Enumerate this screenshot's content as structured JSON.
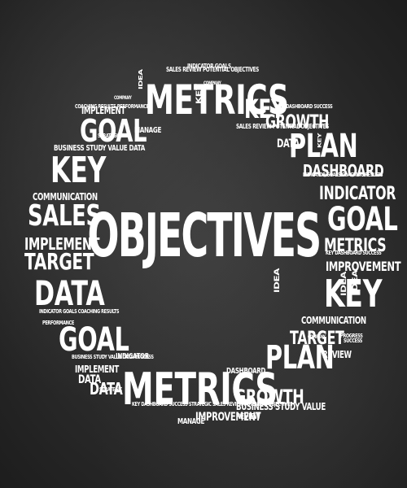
{
  "title": "OBJECTIVES",
  "words": [
    "METRICS",
    "GOAL",
    "KEY",
    "SALES",
    "IMPLEMENT",
    "TARGET",
    "DATA",
    "GOAL",
    "METRICS",
    "GROWTH",
    "PLAN",
    "TARGET",
    "KEY",
    "METRICS",
    "GOAL",
    "INDICATOR",
    "PLAN",
    "GROWTH",
    "KEY",
    "DASHBOARD",
    "IMPROVEMENT",
    "COMMUNICATION",
    "IMPROVEMENT",
    "BUSINESS STUDY VALUE",
    "BUSINESS STUDY VALUE DATA",
    "SALES REVIEW POTENTIAL OBJECTIVES",
    "SALES REVIEW POTENTIAL OBJECTIVES",
    "IMPLEMENT",
    "IMPLEMENT",
    "COMMUNICATION",
    "DATA",
    "DATA",
    "DATA",
    "IDEA",
    "IDEA",
    "IDEA",
    "IDEA",
    "MANAGE",
    "MANAGE",
    "REVIEW",
    "REVIEW",
    "DASHBOARD",
    "INDICATOR",
    "INDICATOR GOALS",
    "KEY DASHBOARD SUCCESS",
    "KEY DASHBOARD SUCCESS",
    "KEY DASHBOARD SUCCESS STRATEGIC SALES REVIEW POTENTIAL OBJECTIVES",
    "COACHING RESULTS PERFORMANCE",
    "INDICATOR GOALS COACHING RESULTS",
    "INDICATOR GOALS COACHING RESULTS",
    "BUSINESS STUDY VALUE DATA PROCESS",
    "STRATEGIC",
    "STRATEGIC",
    "COMPANY",
    "COMPANY",
    "COMPANY",
    "PROGRESS",
    "PERFORMANCE",
    "SUCCESS",
    "KEY",
    "KEY"
  ]
}
